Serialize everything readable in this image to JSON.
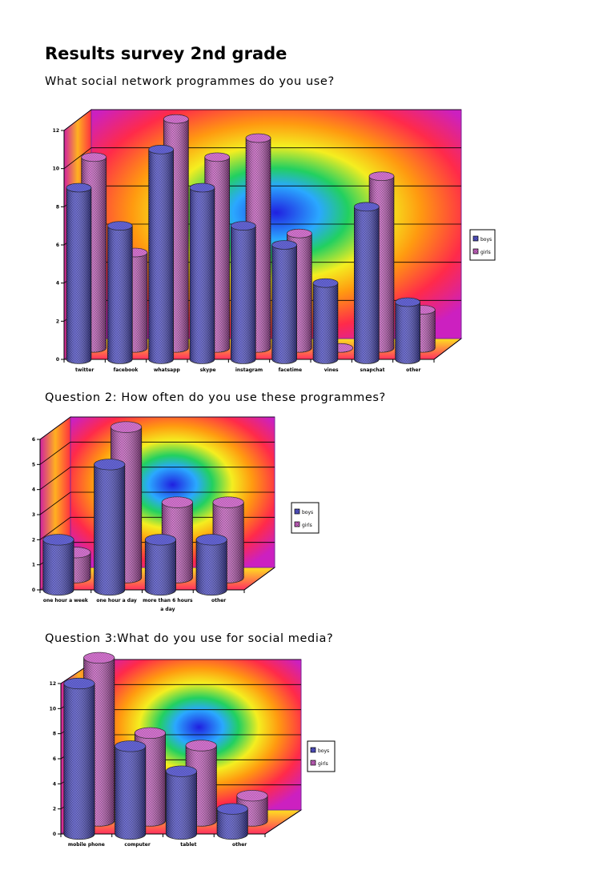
{
  "page": {
    "title": "Results survey 2nd grade",
    "q1": "What social network programmes do you use?",
    "q2": "Question 2: How often do you use these programmes?",
    "q3": "Question 3:What do you use for social media?"
  },
  "colors": {
    "boys": "#5a5ad8",
    "girls": "#d66ad0"
  },
  "chart_data": [
    {
      "type": "bar",
      "title": "",
      "categories": [
        "twitter",
        "facebook",
        "whatsapp",
        "skype",
        "instagram",
        "facetime",
        "vines",
        "snapchat",
        "other"
      ],
      "series": [
        {
          "name": "boys",
          "values": [
            9,
            7,
            11,
            9,
            7,
            6,
            4,
            8,
            3
          ]
        },
        {
          "name": "girls",
          "values": [
            10,
            5,
            12,
            10,
            11,
            6,
            0,
            9,
            2
          ]
        }
      ],
      "ylim": [
        0,
        12
      ],
      "yticks": [
        0,
        2,
        4,
        6,
        8,
        10,
        12
      ],
      "grid": true,
      "legend": "right"
    },
    {
      "type": "bar",
      "title": "",
      "categories": [
        "one hour a week",
        "one hour a day",
        "more than 6 hours a day",
        "other"
      ],
      "series": [
        {
          "name": "boys",
          "values": [
            2,
            5,
            2,
            2
          ]
        },
        {
          "name": "girls",
          "values": [
            1,
            6,
            3,
            3
          ]
        }
      ],
      "ylim": [
        0,
        6
      ],
      "yticks": [
        0,
        1,
        2,
        3,
        4,
        5,
        6
      ],
      "grid": true,
      "legend": "right"
    },
    {
      "type": "bar",
      "title": "",
      "categories": [
        "mobile phone",
        "computer",
        "tablet",
        "other"
      ],
      "series": [
        {
          "name": "boys",
          "values": [
            12,
            7,
            5,
            2
          ]
        },
        {
          "name": "girls",
          "values": [
            13,
            7,
            6,
            2
          ]
        }
      ],
      "ylim": [
        0,
        12
      ],
      "yticks": [
        0,
        2,
        4,
        6,
        8,
        10,
        12
      ],
      "grid": true,
      "legend": "right"
    }
  ]
}
